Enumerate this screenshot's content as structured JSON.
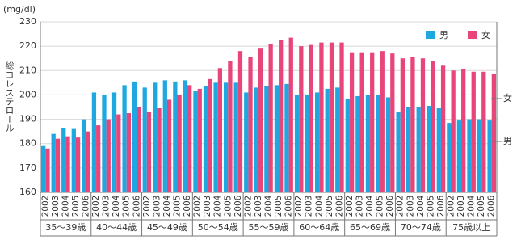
{
  "chart_data": {
    "type": "bar",
    "y_label": "総コレステロール",
    "y_unit": "(mg/dl)",
    "categories": [
      "2002",
      "2003",
      "2004",
      "2005",
      "2006",
      "2002",
      "2003",
      "2004",
      "2005",
      "2006",
      "2002",
      "2003",
      "2004",
      "2005",
      "2006",
      "2002",
      "2003",
      "2004",
      "2005",
      "2006",
      "2002",
      "2003",
      "2004",
      "2005",
      "2006",
      "2002",
      "2003",
      "2004",
      "2005",
      "2006",
      "2002",
      "2003",
      "2004",
      "2005",
      "2006",
      "2002",
      "2003",
      "2004",
      "2005",
      "2006",
      "2002",
      "2003",
      "2004",
      "2005",
      "2006"
    ],
    "groups": [
      "35～39歳",
      "40～44歳",
      "45～49歳",
      "50～54歳",
      "55～59歳",
      "60～64歳",
      "65～69歳",
      "70～74歳",
      "75歳以上"
    ],
    "series": [
      {
        "name": "男",
        "color": "#1fa8e0",
        "values": [
          179,
          184,
          186.5,
          186,
          190,
          201,
          200,
          201,
          204,
          205.5,
          203,
          205,
          206,
          205.5,
          206,
          201.5,
          203.5,
          205,
          205,
          205,
          201,
          203,
          203.5,
          204,
          204.5,
          200,
          200,
          201,
          202.5,
          203,
          198.5,
          199.5,
          200,
          200,
          199,
          193,
          195,
          195,
          195.5,
          194.5,
          188.5,
          189.5,
          190,
          190,
          189.5
        ]
      },
      {
        "name": "女",
        "color": "#e8457a",
        "values": [
          178,
          182,
          183,
          182.5,
          185,
          187.5,
          190,
          192,
          192.5,
          195,
          193,
          194.5,
          198,
          200,
          204,
          202.5,
          206.5,
          211,
          214,
          218,
          215.5,
          219,
          221,
          222.5,
          223.5,
          220,
          220.5,
          221.5,
          221.5,
          221.5,
          217.5,
          217.5,
          217.5,
          218,
          217,
          215,
          215.5,
          215,
          214,
          212,
          210,
          210.5,
          209.5,
          209.5,
          208.5
        ]
      }
    ],
    "annotations": [
      "女",
      "男"
    ],
    "ylim": [
      160,
      230
    ],
    "yticks": [
      160,
      170,
      180,
      190,
      200,
      210,
      220,
      230
    ],
    "grid": true
  }
}
